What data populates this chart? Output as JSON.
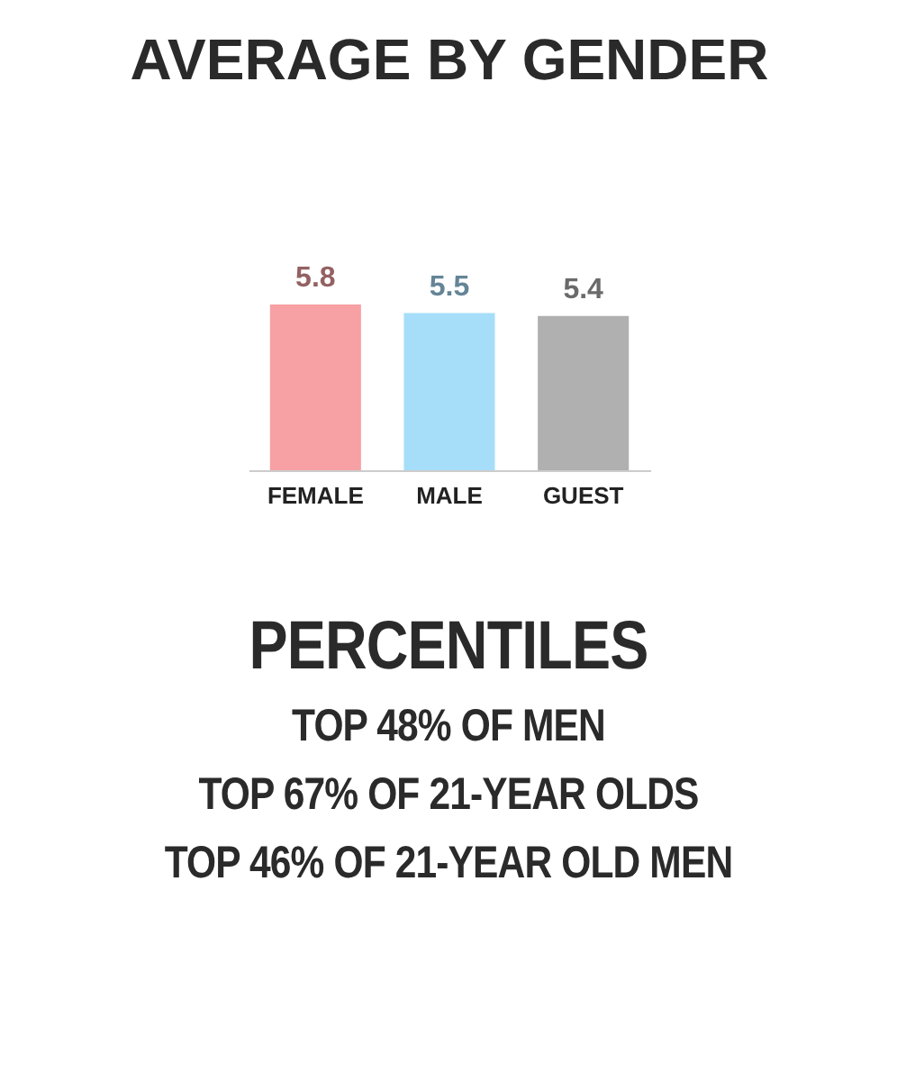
{
  "chart_data": {
    "type": "bar",
    "title": "AVERAGE BY GENDER",
    "categories": [
      "FEMALE",
      "MALE",
      "GUEST"
    ],
    "values": [
      5.8,
      5.5,
      5.4
    ],
    "colors": [
      "#f7a1a4",
      "#a6defa",
      "#b0b0b0"
    ],
    "data_labels": true,
    "grid": false,
    "annotations": [
      "PERCENTILES",
      "TOP 48% OF MEN",
      "TOP 67% OF 21-YEAR OLDS",
      "TOP 46% OF 21-YEAR OLD MEN"
    ]
  }
}
